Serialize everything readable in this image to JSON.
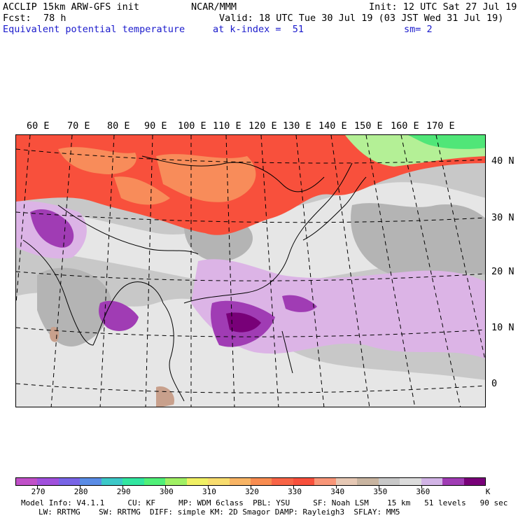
{
  "header": {
    "model_line": "ACCLIP 15km ARW-GFS init",
    "org": "NCAR/MMM",
    "init": "Init: 12 UTC Sat 27 Jul 19",
    "fcst_label": "Fcst:",
    "fcst_value": "78 h",
    "valid": "Valid: 18 UTC Tue 30 Jul 19 (03 JST Wed 31 Jul 19)",
    "field": "Equivalent potential temperature",
    "level": "at k-index =  51",
    "smooth": "sm= 2"
  },
  "map": {
    "lon_labels": [
      "60 E",
      "70 E",
      "80 E",
      "90 E",
      "100 E",
      "110 E",
      "120 E",
      "130 E",
      "140 E",
      "150 E",
      "160 E",
      "170 E"
    ],
    "lat_labels": [
      "40 N",
      "30 N",
      "20 N",
      "10 N",
      "0"
    ],
    "colors": {
      "ocean_grey": "#c8c8c8",
      "light_grey": "#e6e6e6",
      "dark_grey": "#b4b4b4",
      "red": "#f8503c",
      "orange": "#f88c5a",
      "lilac": "#dcb4e6",
      "purple": "#a03cb4",
      "dark_purple": "#780078",
      "green": "#50e678",
      "yellowgreen": "#b4f096",
      "tan": "#c8a08c"
    }
  },
  "colorbar": {
    "colors": [
      "#c050c8",
      "#a050dc",
      "#7864e6",
      "#5a8ce6",
      "#3cc8c8",
      "#32e6a0",
      "#50f078",
      "#a0f064",
      "#f0f064",
      "#f8dc6e",
      "#f8b464",
      "#f88c50",
      "#f86446",
      "#f8503c",
      "#f89678",
      "#e6c8b4",
      "#c8b4a0",
      "#c8c8c8",
      "#dcdcdc",
      "#d2b4e6",
      "#a03cb4",
      "#780078"
    ],
    "labels": [
      "270",
      "280",
      "290",
      "300",
      "310",
      "320",
      "330",
      "340",
      "350",
      "360"
    ],
    "unit": "K"
  },
  "footer": {
    "line1": "Model Info: V4.1.1     CU: KF     MP: WDM 6class  PBL: YSU     SF: Noah LSM    15 km   51 levels   90 sec",
    "line2": "LW: RRTMG    SW: RRTMG  DIFF: simple KM: 2D Smagor DAMP: Rayleigh3  SFLAY: MM5"
  }
}
